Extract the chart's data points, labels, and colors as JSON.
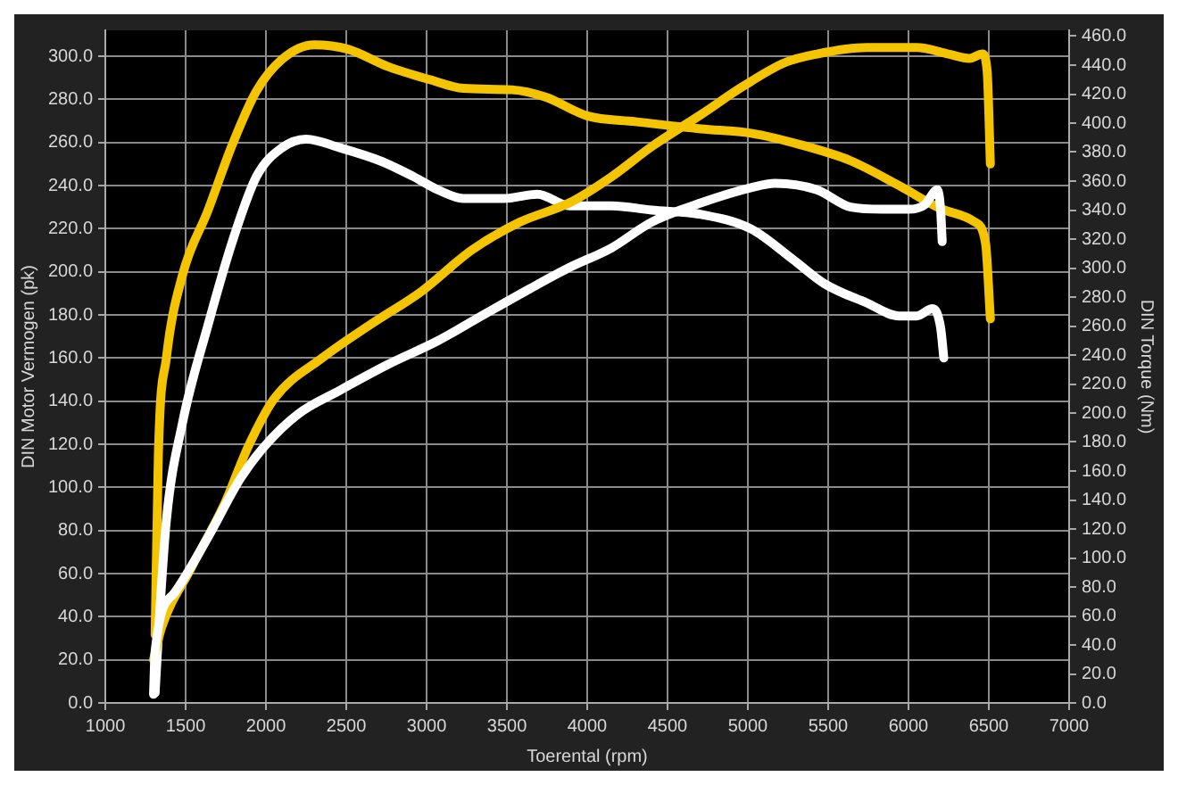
{
  "chart_data": {
    "type": "line",
    "xlabel": "Toerental (rpm)",
    "ylabel": "DIN Motor Vermogen (pk)",
    "y2label": "DIN Torque (Nm)",
    "grid": true,
    "marker": "none",
    "line_style": "solid",
    "xlim": [
      1000,
      7000
    ],
    "xticks": [
      1000,
      1500,
      2000,
      2500,
      3000,
      3500,
      4000,
      4500,
      5000,
      5500,
      6000,
      6500,
      7000
    ],
    "ylim": [
      0,
      312
    ],
    "yticks": [
      {
        "value": 0,
        "label": "0.0"
      },
      {
        "value": 20,
        "label": "20.0"
      },
      {
        "value": 40,
        "label": "40.0"
      },
      {
        "value": 60,
        "label": "60.0"
      },
      {
        "value": 80,
        "label": "80.0"
      },
      {
        "value": 100,
        "label": "100.0"
      },
      {
        "value": 120,
        "label": "120.0"
      },
      {
        "value": 140,
        "label": "140.0"
      },
      {
        "value": 160,
        "label": "160.0"
      },
      {
        "value": 180,
        "label": "180.0"
      },
      {
        "value": 200,
        "label": "200.0"
      },
      {
        "value": 220,
        "label": "220.0"
      },
      {
        "value": 240,
        "label": "240.0"
      },
      {
        "value": 260,
        "label": "260.0"
      },
      {
        "value": 280,
        "label": "280.0"
      },
      {
        "value": 300,
        "label": "300.0"
      }
    ],
    "y2lim": [
      0,
      464
    ],
    "y2ticks": [
      {
        "value": 0,
        "label": "0.0"
      },
      {
        "value": 20,
        "label": "20.0"
      },
      {
        "value": 40,
        "label": "40.0"
      },
      {
        "value": 60,
        "label": "60.0"
      },
      {
        "value": 80,
        "label": "80.0"
      },
      {
        "value": 100,
        "label": "100.0"
      },
      {
        "value": 120,
        "label": "120.0"
      },
      {
        "value": 140,
        "label": "140.0"
      },
      {
        "value": 160,
        "label": "160.0"
      },
      {
        "value": 180,
        "label": "180.0"
      },
      {
        "value": 200,
        "label": "200.0"
      },
      {
        "value": 220,
        "label": "220.0"
      },
      {
        "value": 240,
        "label": "240.0"
      },
      {
        "value": 260,
        "label": "260.0"
      },
      {
        "value": 280,
        "label": "280.0"
      },
      {
        "value": 300,
        "label": "300.0"
      },
      {
        "value": 320,
        "label": "320.0"
      },
      {
        "value": 340,
        "label": "340.0"
      },
      {
        "value": 360,
        "label": "360.0"
      },
      {
        "value": 380,
        "label": "380.0"
      },
      {
        "value": 400,
        "label": "400.0"
      },
      {
        "value": 420,
        "label": "420.0"
      },
      {
        "value": 440,
        "label": "440.0"
      },
      {
        "value": 460,
        "label": "460.0"
      }
    ],
    "series": [
      {
        "color": "#ffffff",
        "x": [
          1300,
          1310,
          1430,
          1640,
          1840,
          1990,
          2200,
          2460,
          2760,
          3070,
          3330,
          3640,
          3890,
          4150,
          4400,
          4710,
          5020,
          5170,
          5430,
          5640,
          5840,
          6000,
          6100,
          6180,
          6200,
          6210
        ],
        "values": [
          4,
          24,
          51,
          77,
          104,
          119,
          134,
          145,
          157,
          168,
          179,
          192,
          202,
          211,
          223,
          232,
          239,
          241,
          238,
          230,
          229,
          229,
          231,
          238,
          229,
          214
        ]
      },
      {
        "color": "#f5c400",
        "x": [
          1300,
          1350,
          1530,
          1740,
          1890,
          2050,
          2350,
          2660,
          2970,
          3280,
          3580,
          3890,
          4150,
          4400,
          4710,
          4970,
          5230,
          5430,
          5740,
          6050,
          6250,
          6380,
          6460,
          6490,
          6510
        ],
        "values": [
          20,
          35,
          62,
          92,
          119,
          141,
          160,
          176,
          191,
          210,
          223,
          232,
          244,
          258,
          273,
          286,
          297,
          301,
          304,
          304,
          301,
          299,
          301,
          293,
          250
        ]
      },
      {
        "color": "#ffffff",
        "axis": "y2",
        "x": [
          1310,
          1330,
          1380,
          1480,
          1640,
          1790,
          1940,
          2100,
          2250,
          2460,
          2710,
          2920,
          3070,
          3230,
          3480,
          3690,
          3890,
          4150,
          4400,
          4710,
          5020,
          5280,
          5480,
          5740,
          5940,
          6050,
          6150,
          6200,
          6220
        ],
        "values": [
          7,
          47,
          126,
          193,
          261,
          318,
          363,
          383,
          389,
          383,
          374,
          363,
          354,
          348,
          348,
          351,
          343,
          343,
          340,
          337,
          327,
          306,
          289,
          276,
          267,
          267,
          272,
          259,
          238
        ]
      },
      {
        "color": "#f5c400",
        "axis": "y2",
        "x": [
          1310,
          1330,
          1380,
          1480,
          1640,
          1790,
          1940,
          2100,
          2300,
          2510,
          2760,
          3020,
          3230,
          3530,
          3740,
          4000,
          4300,
          4710,
          5020,
          5330,
          5640,
          5940,
          6200,
          6410,
          6480,
          6510
        ],
        "values": [
          47,
          171,
          238,
          295,
          340,
          385,
          422,
          444,
          454,
          451,
          439,
          430,
          424,
          423,
          418,
          405,
          401,
          396,
          393,
          385,
          374,
          357,
          341,
          332,
          317,
          265
        ]
      }
    ]
  }
}
